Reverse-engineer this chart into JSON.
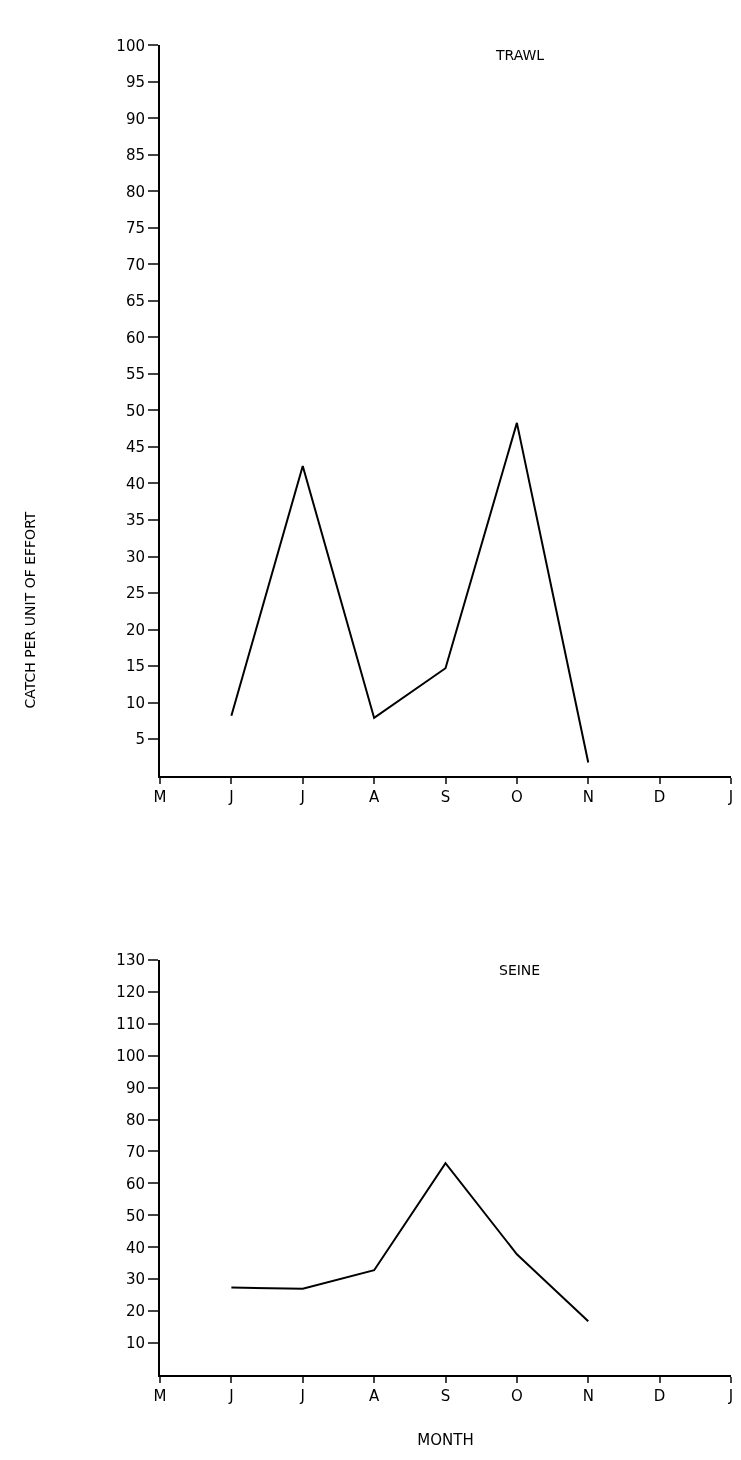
{
  "chart_data": [
    {
      "type": "line",
      "title": "TRAWL",
      "ylabel": "CATCH PER UNIT OF EFFORT",
      "categories": [
        "M",
        "J",
        "J",
        "A",
        "S",
        "O",
        "N",
        "D",
        "J"
      ],
      "series": [
        {
          "color": "#000000",
          "values": [
            null,
            8.2,
            42.4,
            7.9,
            14.7,
            48.3,
            1.8,
            null,
            null
          ]
        }
      ],
      "ylim": [
        0,
        100
      ],
      "yticks": [
        5,
        10,
        15,
        20,
        25,
        30,
        35,
        40,
        45,
        50,
        55,
        60,
        65,
        70,
        75,
        80,
        85,
        90,
        95,
        100
      ],
      "marker": "none",
      "line_style": "solid"
    },
    {
      "type": "line",
      "title": "SEINE",
      "xlabel": "MONTH",
      "categories": [
        "M",
        "J",
        "J",
        "A",
        "S",
        "O",
        "N",
        "D",
        "J"
      ],
      "series": [
        {
          "color": "#000000",
          "values": [
            null,
            27.4,
            27.0,
            32.8,
            66.3,
            37.8,
            16.8,
            null,
            null
          ]
        }
      ],
      "ylim": [
        0,
        130
      ],
      "yticks": [
        10,
        20,
        30,
        40,
        50,
        60,
        70,
        80,
        90,
        100,
        110,
        120,
        130
      ],
      "marker": "none",
      "line_style": "solid"
    }
  ]
}
